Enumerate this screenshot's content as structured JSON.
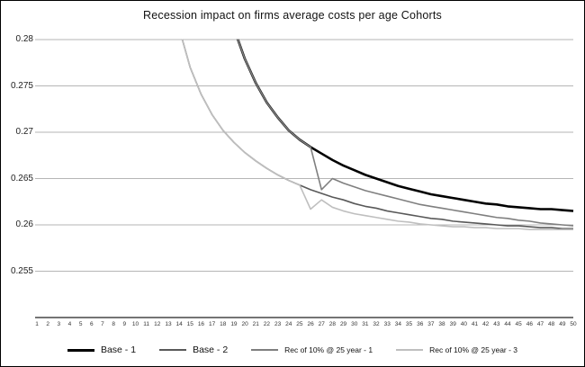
{
  "chart_data": {
    "type": "line",
    "title": "Recession impact on firms average costs per age Cohorts",
    "xlabel": "",
    "ylabel": "",
    "xlim": [
      1,
      50
    ],
    "ylim": [
      0.25,
      0.28
    ],
    "grid": "horizontal",
    "legend_position": "bottom",
    "x_ticks": [
      1,
      2,
      3,
      4,
      5,
      6,
      7,
      8,
      9,
      10,
      11,
      12,
      13,
      14,
      15,
      16,
      17,
      18,
      19,
      20,
      21,
      22,
      23,
      24,
      25,
      26,
      27,
      28,
      29,
      30,
      31,
      32,
      33,
      34,
      35,
      36,
      37,
      38,
      39,
      40,
      41,
      42,
      43,
      44,
      45,
      46,
      47,
      48,
      49,
      50
    ],
    "y_ticks": [
      {
        "label": "0.28",
        "value": 0.28
      },
      {
        "label": "0.275",
        "value": 0.275
      },
      {
        "label": "0.27",
        "value": 0.27
      },
      {
        "label": "0.265",
        "value": 0.265
      },
      {
        "label": "0.26",
        "value": 0.26
      },
      {
        "label": "0.255",
        "value": 0.255
      }
    ],
    "series": [
      {
        "name": "Base - 1",
        "color": "#000000",
        "width": 2.6,
        "points": [
          [
            19,
            0.2812
          ],
          [
            20,
            0.2779
          ],
          [
            21,
            0.2753
          ],
          [
            22,
            0.2732
          ],
          [
            23,
            0.2716
          ],
          [
            24,
            0.2702
          ],
          [
            25,
            0.2692
          ],
          [
            26,
            0.2684
          ],
          [
            27,
            0.2677
          ],
          [
            28,
            0.267
          ],
          [
            29,
            0.2664
          ],
          [
            30,
            0.2659
          ],
          [
            31,
            0.2654
          ],
          [
            32,
            0.265
          ],
          [
            33,
            0.2646
          ],
          [
            34,
            0.2642
          ],
          [
            35,
            0.2639
          ],
          [
            36,
            0.2636
          ],
          [
            37,
            0.2633
          ],
          [
            38,
            0.2631
          ],
          [
            39,
            0.2629
          ],
          [
            40,
            0.2627
          ],
          [
            41,
            0.2625
          ],
          [
            42,
            0.2623
          ],
          [
            43,
            0.2622
          ],
          [
            44,
            0.262
          ],
          [
            45,
            0.2619
          ],
          [
            46,
            0.2618
          ],
          [
            47,
            0.2617
          ],
          [
            48,
            0.2617
          ],
          [
            49,
            0.2616
          ],
          [
            50,
            0.2615
          ]
        ]
      },
      {
        "name": "Base - 2",
        "color": "#595959",
        "width": 1.6,
        "points": [
          [
            14,
            0.2812
          ],
          [
            15,
            0.277
          ],
          [
            16,
            0.2741
          ],
          [
            17,
            0.2719
          ],
          [
            18,
            0.2702
          ],
          [
            19,
            0.2689
          ],
          [
            20,
            0.2678
          ],
          [
            21,
            0.2669
          ],
          [
            22,
            0.2661
          ],
          [
            23,
            0.2654
          ],
          [
            24,
            0.2648
          ],
          [
            25,
            0.2643
          ],
          [
            26,
            0.2638
          ],
          [
            27,
            0.2634
          ],
          [
            28,
            0.263
          ],
          [
            29,
            0.2627
          ],
          [
            30,
            0.2623
          ],
          [
            31,
            0.262
          ],
          [
            32,
            0.2618
          ],
          [
            33,
            0.2615
          ],
          [
            34,
            0.2613
          ],
          [
            35,
            0.2611
          ],
          [
            36,
            0.2609
          ],
          [
            37,
            0.2607
          ],
          [
            38,
            0.2606
          ],
          [
            39,
            0.2604
          ],
          [
            40,
            0.2603
          ],
          [
            41,
            0.2602
          ],
          [
            42,
            0.2601
          ],
          [
            43,
            0.26
          ],
          [
            44,
            0.2599
          ],
          [
            45,
            0.2599
          ],
          [
            46,
            0.2598
          ],
          [
            47,
            0.2597
          ],
          [
            48,
            0.2597
          ],
          [
            49,
            0.2596
          ],
          [
            50,
            0.2596
          ]
        ]
      },
      {
        "name": "Rec of 10% @ 25 year - 1",
        "color": "#7f7f7f",
        "width": 1.6,
        "points": [
          [
            19,
            0.2812
          ],
          [
            20,
            0.2779
          ],
          [
            21,
            0.2753
          ],
          [
            22,
            0.2732
          ],
          [
            23,
            0.2716
          ],
          [
            24,
            0.2702
          ],
          [
            25,
            0.2692
          ],
          [
            26,
            0.2684
          ],
          [
            27,
            0.2638
          ],
          [
            28,
            0.265
          ],
          [
            29,
            0.2645
          ],
          [
            30,
            0.2641
          ],
          [
            31,
            0.2637
          ],
          [
            32,
            0.2634
          ],
          [
            33,
            0.2631
          ],
          [
            34,
            0.2628
          ],
          [
            35,
            0.2625
          ],
          [
            36,
            0.2622
          ],
          [
            37,
            0.262
          ],
          [
            38,
            0.2618
          ],
          [
            39,
            0.2616
          ],
          [
            40,
            0.2614
          ],
          [
            41,
            0.2612
          ],
          [
            42,
            0.261
          ],
          [
            43,
            0.2608
          ],
          [
            44,
            0.2607
          ],
          [
            45,
            0.2605
          ],
          [
            46,
            0.2604
          ],
          [
            47,
            0.2602
          ],
          [
            48,
            0.2601
          ],
          [
            49,
            0.26
          ],
          [
            50,
            0.2599
          ]
        ]
      },
      {
        "name": "Rec of 10% @ 25 year - 3",
        "color": "#bfbfbf",
        "width": 1.6,
        "points": [
          [
            14,
            0.2812
          ],
          [
            15,
            0.277
          ],
          [
            16,
            0.2741
          ],
          [
            17,
            0.2719
          ],
          [
            18,
            0.2702
          ],
          [
            19,
            0.2689
          ],
          [
            20,
            0.2678
          ],
          [
            21,
            0.2669
          ],
          [
            22,
            0.2661
          ],
          [
            23,
            0.2654
          ],
          [
            24,
            0.2648
          ],
          [
            25,
            0.2643
          ],
          [
            26,
            0.2617
          ],
          [
            27,
            0.2627
          ],
          [
            28,
            0.2619
          ],
          [
            29,
            0.2615
          ],
          [
            30,
            0.2612
          ],
          [
            31,
            0.261
          ],
          [
            32,
            0.2608
          ],
          [
            33,
            0.2606
          ],
          [
            34,
            0.2604
          ],
          [
            35,
            0.2603
          ],
          [
            36,
            0.2601
          ],
          [
            37,
            0.26
          ],
          [
            38,
            0.2599
          ],
          [
            39,
            0.2598
          ],
          [
            40,
            0.2598
          ],
          [
            41,
            0.2597
          ],
          [
            42,
            0.2597
          ],
          [
            43,
            0.2596
          ],
          [
            44,
            0.2596
          ],
          [
            45,
            0.2596
          ],
          [
            46,
            0.2595
          ],
          [
            47,
            0.2595
          ],
          [
            48,
            0.2595
          ],
          [
            49,
            0.2595
          ],
          [
            50,
            0.2595
          ]
        ]
      }
    ]
  }
}
